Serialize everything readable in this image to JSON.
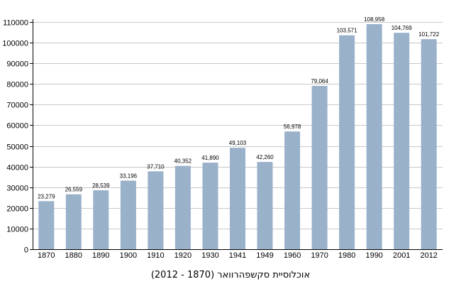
{
  "chart_data": {
    "type": "bar",
    "title": "",
    "caption": "אוכלוסיית סקשפהרוואר (1870 - 2012)",
    "xlabel": "",
    "ylabel": "",
    "ylim": [
      0,
      110000
    ],
    "yticks": [
      0,
      10000,
      20000,
      30000,
      40000,
      50000,
      60000,
      70000,
      80000,
      90000,
      100000,
      110000
    ],
    "grid": true,
    "bar_color": "#9ab1ca",
    "categories": [
      "1870",
      "1880",
      "1890",
      "1900",
      "1910",
      "1920",
      "1930",
      "1941",
      "1949",
      "1960",
      "1970",
      "1980",
      "1990",
      "2001",
      "2012"
    ],
    "values": [
      23279,
      26559,
      28539,
      33196,
      37710,
      40352,
      41890,
      49103,
      42260,
      56978,
      79064,
      103571,
      108958,
      104769,
      101722
    ],
    "data_labels": [
      "23,279",
      "26,559",
      "28,539",
      "33,196",
      "37,710",
      "40,352",
      "41,890",
      "49,103",
      "42,260",
      "56,978",
      "79,064",
      "103,571",
      "108,958",
      "104,769",
      "101,722"
    ]
  }
}
